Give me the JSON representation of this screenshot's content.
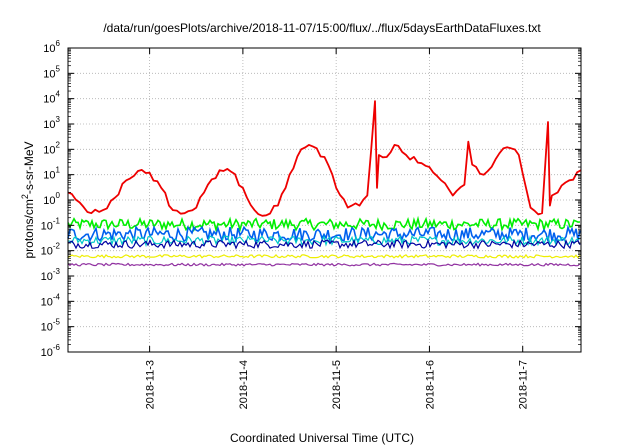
{
  "chart_data": {
    "type": "line",
    "title": "/data/run/goesPlots/archive/2018-11-07/15:00/flux/../flux/5daysEarthDataFluxes.txt",
    "xlabel": "Coordinated Universal Time (UTC)",
    "ylabel_main": "protons/cm",
    "ylabel_sup": "2",
    "ylabel_tail": "-s-sr-MeV",
    "yscale": "log",
    "ylim": [
      1e-06,
      1000000
    ],
    "xlim": [
      "2018-11-02 03:00",
      "2018-11-07 15:00"
    ],
    "grid": true,
    "legend": "none",
    "x_ticks": [
      "2018-11-3",
      "2018-11-4",
      "2018-11-5",
      "2018-11-6",
      "2018-11-7"
    ],
    "y_ticks": [
      {
        "base": "10",
        "exp": "-6"
      },
      {
        "base": "10",
        "exp": "-5"
      },
      {
        "base": "10",
        "exp": "-4"
      },
      {
        "base": "10",
        "exp": "-3"
      },
      {
        "base": "10",
        "exp": "-2"
      },
      {
        "base": "10",
        "exp": "-1"
      },
      {
        "base": "10",
        "exp": "0"
      },
      {
        "base": "10",
        "exp": "1"
      },
      {
        "base": "10",
        "exp": "2"
      },
      {
        "base": "10",
        "exp": "3"
      },
      {
        "base": "10",
        "exp": "4"
      },
      {
        "base": "10",
        "exp": "5"
      },
      {
        "base": "10",
        "exp": "6"
      }
    ],
    "series": [
      {
        "color": "#ee0000",
        "x": [
          "2018-11-02 03:00",
          "2018-11-02 06:00",
          "2018-11-02 09:00",
          "2018-11-02 12:00",
          "2018-11-02 15:00",
          "2018-11-02 18:00",
          "2018-11-02 21:00",
          "2018-11-03 00:00",
          "2018-11-03 03:00",
          "2018-11-03 06:00",
          "2018-11-03 09:00",
          "2018-11-03 12:00",
          "2018-11-03 15:00",
          "2018-11-03 18:00",
          "2018-11-03 21:00",
          "2018-11-04 00:00",
          "2018-11-04 03:00",
          "2018-11-04 06:00",
          "2018-11-04 09:00",
          "2018-11-04 12:00",
          "2018-11-04 15:00",
          "2018-11-04 18:00",
          "2018-11-04 21:00",
          "2018-11-05 00:00",
          "2018-11-05 03:00",
          "2018-11-05 06:00",
          "2018-11-05 08:00",
          "2018-11-05 10:00",
          "2018-11-05 10:30",
          "2018-11-05 11:00",
          "2018-11-05 13:00",
          "2018-11-05 15:00",
          "2018-11-05 18:00",
          "2018-11-05 21:00",
          "2018-11-06 00:00",
          "2018-11-06 03:00",
          "2018-11-06 06:00",
          "2018-11-06 09:00",
          "2018-11-06 10:00",
          "2018-11-06 11:00",
          "2018-11-06 14:00",
          "2018-11-06 17:00",
          "2018-11-06 20:00",
          "2018-11-06 23:00",
          "2018-11-07 02:00",
          "2018-11-07 05:00",
          "2018-11-07 06:30",
          "2018-11-07 07:00",
          "2018-11-07 07:30",
          "2018-11-07 09:00",
          "2018-11-07 12:00",
          "2018-11-07 15:00"
        ],
        "values": [
          2,
          0.8,
          0.3,
          0.4,
          1.2,
          6,
          14,
          12,
          3,
          0.4,
          0.3,
          0.5,
          4,
          15,
          13,
          3,
          0.4,
          0.25,
          0.6,
          10,
          100,
          130,
          50,
          3,
          0.5,
          0.6,
          1.5,
          8000,
          3,
          60,
          50,
          150,
          60,
          30,
          20,
          6,
          1.5,
          4,
          200,
          25,
          10,
          40,
          120,
          60,
          0.5,
          0.3,
          1200,
          0.6,
          1.5,
          2,
          6,
          15
        ]
      },
      {
        "color": "#00ee00",
        "x": [
          "2018-11-02 03:00",
          "2018-11-07 15:00"
        ],
        "values": [
          0.11,
          0.11
        ]
      },
      {
        "color": "#0060ee",
        "x": [
          "2018-11-02 03:00",
          "2018-11-07 15:00"
        ],
        "values": [
          0.045,
          0.045
        ]
      },
      {
        "color": "#00c8c8",
        "x": [
          "2018-11-02 03:00",
          "2018-11-07 15:00"
        ],
        "values": [
          0.025,
          0.025
        ]
      },
      {
        "color": "#0000a0",
        "x": [
          "2018-11-02 03:00",
          "2018-11-07 15:00"
        ],
        "values": [
          0.018,
          0.018
        ]
      },
      {
        "color": "#eeee00",
        "x": [
          "2018-11-02 03:00",
          "2018-11-07 15:00"
        ],
        "values": [
          0.006,
          0.006
        ]
      },
      {
        "color": "#9030a0",
        "x": [
          "2018-11-02 03:00",
          "2018-11-07 15:00"
        ],
        "values": [
          0.0028,
          0.0028
        ]
      }
    ]
  }
}
